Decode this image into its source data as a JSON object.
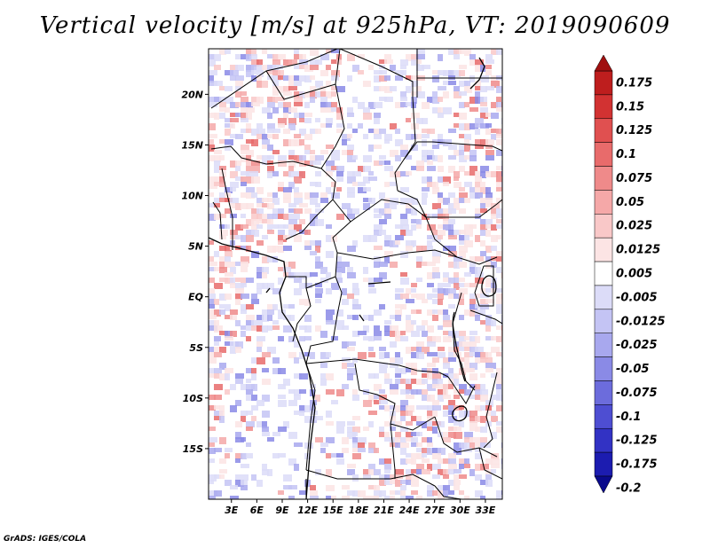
{
  "title": "Vertical velocity [m/s] at 925hPa, VT: 2019090609",
  "credit": "GrADS: IGES/COLA",
  "map": {
    "variable": "Vertical velocity",
    "units": "m/s",
    "level": "925hPa",
    "valid_time": "2019090609",
    "lon_ticks": [
      "3E",
      "6E",
      "9E",
      "12E",
      "15E",
      "18E",
      "21E",
      "24E",
      "27E",
      "30E",
      "33E"
    ],
    "lat_ticks": [
      "20N",
      "15N",
      "10N",
      "5N",
      "EQ",
      "5S",
      "10S",
      "15S"
    ],
    "lon_values": [
      3,
      6,
      9,
      12,
      15,
      18,
      21,
      24,
      27,
      30,
      33
    ],
    "lat_values": [
      20,
      15,
      10,
      5,
      0,
      -5,
      -10,
      -15
    ],
    "lon_range": [
      0.3,
      35
    ],
    "lat_range": [
      -20,
      24.5
    ]
  },
  "colorbar": {
    "labels": [
      "0.175",
      "0.15",
      "0.125",
      "0.1",
      "0.075",
      "0.05",
      "0.025",
      "0.0125",
      "0.005",
      "-0.005",
      "-0.0125",
      "-0.025",
      "-0.05",
      "-0.075",
      "-0.1",
      "-0.125",
      "-0.175",
      "-0.2"
    ],
    "colors": [
      "#a01010",
      "#be1e1e",
      "#d23232",
      "#e05050",
      "#e86b6b",
      "#ef8a8a",
      "#f5a8a8",
      "#f9c8c8",
      "#fce4e4",
      "#ffffff",
      "#dcdcf8",
      "#c4c4f4",
      "#a8a8ee",
      "#8a8ae6",
      "#6c6cdc",
      "#4e4ed2",
      "#3232c4",
      "#1c1cb0",
      "#0a0a8c"
    ]
  },
  "icons": {
    "colorbar_top": "triangle-up-icon",
    "colorbar_bottom": "triangle-down-icon"
  }
}
